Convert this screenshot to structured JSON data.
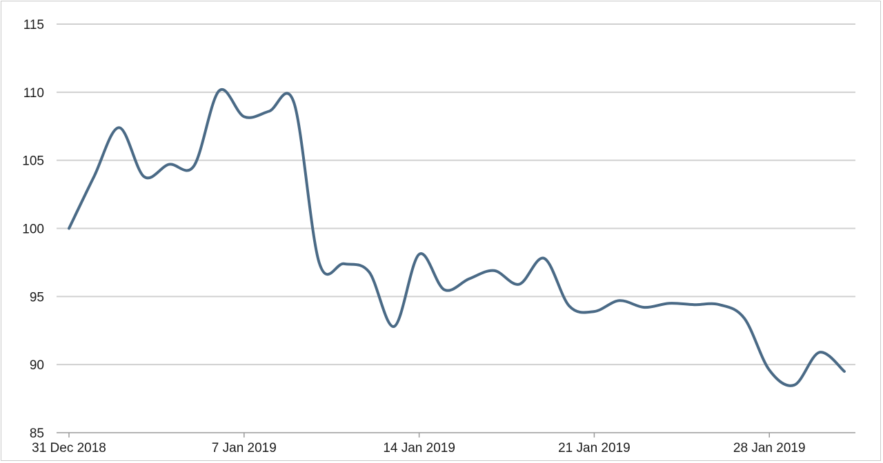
{
  "colors": {
    "series": "#4a6a86",
    "grid": "#d0d0d0",
    "text": "#1a1a1a"
  },
  "chart_data": {
    "type": "line",
    "title": "",
    "xlabel": "",
    "ylabel": "",
    "ylim": [
      85,
      115
    ],
    "yticks": [
      85,
      90,
      95,
      100,
      105,
      110,
      115
    ],
    "grid": true,
    "legend": "none",
    "x_tick_labels": [
      "31 Dec 2018",
      "7 Jan 2019",
      "14 Jan 2019",
      "21 Jan 2019",
      "28 Jan 2019"
    ],
    "x_tick_dates": [
      "2018-12-31",
      "2019-01-07",
      "2019-01-14",
      "2019-01-21",
      "2019-01-28"
    ],
    "series": [
      {
        "x": [
          "2018-12-31",
          "2019-01-01",
          "2019-01-02",
          "2019-01-03",
          "2019-01-04",
          "2019-01-05",
          "2019-01-06",
          "2019-01-07",
          "2019-01-08",
          "2019-01-09",
          "2019-01-10",
          "2019-01-11",
          "2019-01-12",
          "2019-01-13",
          "2019-01-14",
          "2019-01-15",
          "2019-01-16",
          "2019-01-17",
          "2019-01-18",
          "2019-01-19",
          "2019-01-20",
          "2019-01-21",
          "2019-01-22",
          "2019-01-23",
          "2019-01-24",
          "2019-01-25",
          "2019-01-26",
          "2019-01-27",
          "2019-01-28",
          "2019-01-29",
          "2019-01-30",
          "2019-01-31"
        ],
        "values": [
          100.0,
          103.8,
          107.4,
          103.8,
          104.7,
          104.6,
          110.1,
          108.2,
          108.6,
          109.2,
          97.5,
          97.4,
          96.8,
          92.8,
          98.1,
          95.5,
          96.3,
          96.9,
          95.9,
          97.8,
          94.3,
          93.9,
          94.7,
          94.2,
          94.5,
          94.4,
          94.4,
          93.4,
          89.6,
          88.5,
          90.9,
          89.5
        ]
      }
    ]
  }
}
